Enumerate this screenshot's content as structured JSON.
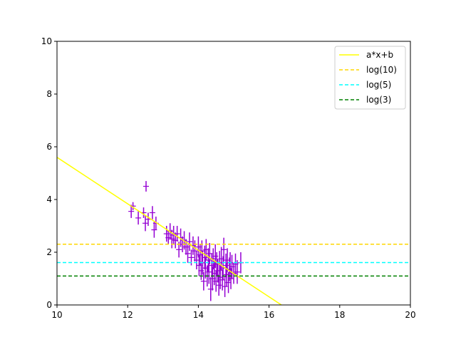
{
  "chart_data": {
    "type": "scatter",
    "title": "",
    "xlabel": "",
    "ylabel": "",
    "xlim": [
      10,
      20
    ],
    "ylim": [
      0,
      10
    ],
    "xticks": [
      10,
      12,
      14,
      16,
      18,
      20
    ],
    "yticks": [
      0,
      2,
      4,
      6,
      8,
      10
    ],
    "grid": false,
    "legend_position": "top-right",
    "series": [
      {
        "name": "a*x+b",
        "kind": "line",
        "color": "#ffff00",
        "dash": "solid",
        "x": [
          10,
          16.35
        ],
        "y": [
          5.6,
          0
        ]
      },
      {
        "name": "log(10)",
        "kind": "hline",
        "color": "#ffd700",
        "dash": "dashed",
        "y": 2.303
      },
      {
        "name": "log(5)",
        "kind": "hline",
        "color": "#00ffff",
        "dash": "dashed",
        "y": 1.609
      },
      {
        "name": "log(3)",
        "kind": "hline",
        "color": "#008000",
        "dash": "dashed",
        "y": 1.099
      }
    ],
    "errorbar_data": {
      "color": "#9400d3",
      "points": [
        [
          12.1,
          3.55,
          0.25
        ],
        [
          12.15,
          3.75,
          0.15
        ],
        [
          12.3,
          3.3,
          0.25
        ],
        [
          12.45,
          3.5,
          0.2
        ],
        [
          12.5,
          3.1,
          0.3
        ],
        [
          12.52,
          4.5,
          0.2
        ],
        [
          12.58,
          3.25,
          0.25
        ],
        [
          12.7,
          3.5,
          0.25
        ],
        [
          12.75,
          2.85,
          0.3
        ],
        [
          12.8,
          3.1,
          0.25
        ],
        [
          13.1,
          2.7,
          0.3
        ],
        [
          13.15,
          2.55,
          0.25
        ],
        [
          13.2,
          2.8,
          0.3
        ],
        [
          13.25,
          2.5,
          0.35
        ],
        [
          13.3,
          2.65,
          0.35
        ],
        [
          13.35,
          2.45,
          0.3
        ],
        [
          13.4,
          2.7,
          0.3
        ],
        [
          13.45,
          2.1,
          0.3
        ],
        [
          13.5,
          2.55,
          0.35
        ],
        [
          13.55,
          2.3,
          0.3
        ],
        [
          13.6,
          2.45,
          0.35
        ],
        [
          13.65,
          2.2,
          0.3
        ],
        [
          13.7,
          1.95,
          0.35
        ],
        [
          13.75,
          2.4,
          0.35
        ],
        [
          13.8,
          1.8,
          0.3
        ],
        [
          13.85,
          2.25,
          0.35
        ],
        [
          13.9,
          2.05,
          0.4
        ],
        [
          13.95,
          1.7,
          0.35
        ],
        [
          14.0,
          2.2,
          0.4
        ],
        [
          14.02,
          1.5,
          0.4
        ],
        [
          14.05,
          1.9,
          0.4
        ],
        [
          14.08,
          1.3,
          0.35
        ],
        [
          14.1,
          2.05,
          0.4
        ],
        [
          14.12,
          1.6,
          0.45
        ],
        [
          14.15,
          0.9,
          0.35
        ],
        [
          14.18,
          1.8,
          0.45
        ],
        [
          14.2,
          1.4,
          0.4
        ],
        [
          14.22,
          2.1,
          0.4
        ],
        [
          14.25,
          1.1,
          0.4
        ],
        [
          14.28,
          1.7,
          0.45
        ],
        [
          14.3,
          1.25,
          0.45
        ],
        [
          14.32,
          1.95,
          0.4
        ],
        [
          14.35,
          0.6,
          0.45
        ],
        [
          14.38,
          1.5,
          0.45
        ],
        [
          14.4,
          1.0,
          0.45
        ],
        [
          14.42,
          1.75,
          0.4
        ],
        [
          14.45,
          1.2,
          0.45
        ],
        [
          14.48,
          1.85,
          0.45
        ],
        [
          14.5,
          0.9,
          0.4
        ],
        [
          14.52,
          1.55,
          0.45
        ],
        [
          14.55,
          1.3,
          0.45
        ],
        [
          14.58,
          0.75,
          0.4
        ],
        [
          14.6,
          1.6,
          0.45
        ],
        [
          14.62,
          1.05,
          0.45
        ],
        [
          14.65,
          1.75,
          0.45
        ],
        [
          14.68,
          0.95,
          0.4
        ],
        [
          14.7,
          1.4,
          0.45
        ],
        [
          14.72,
          2.1,
          0.45
        ],
        [
          14.75,
          0.7,
          0.4
        ],
        [
          14.78,
          1.5,
          0.45
        ],
        [
          14.8,
          1.15,
          0.45
        ],
        [
          14.82,
          1.7,
          0.45
        ],
        [
          14.85,
          0.85,
          0.4
        ],
        [
          14.88,
          1.35,
          0.45
        ],
        [
          14.9,
          1.6,
          0.4
        ],
        [
          14.92,
          1.0,
          0.4
        ],
        [
          14.95,
          1.45,
          0.45
        ],
        [
          15.0,
          1.2,
          0.4
        ],
        [
          15.05,
          1.55,
          0.4
        ],
        [
          15.1,
          1.25,
          0.45
        ],
        [
          15.2,
          1.6,
          0.4
        ]
      ]
    }
  }
}
